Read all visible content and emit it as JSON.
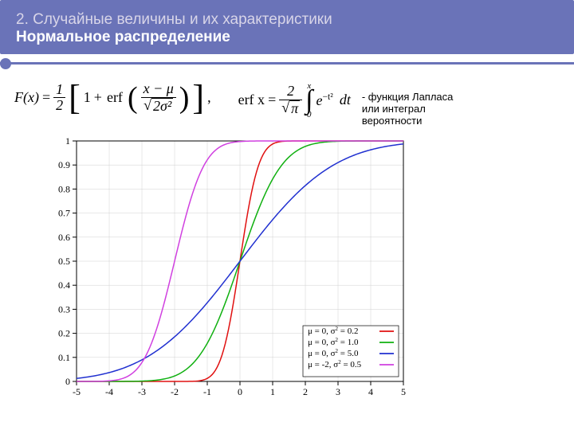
{
  "header": {
    "line1": "2. Случайные величины и их характеристики",
    "line2": "Нормальное распределение",
    "bg_color": "#6a73b8"
  },
  "formula_note": "- функция Лапласа или интеграл вероятности",
  "formula": {
    "F": "F(x)",
    "half_num": "1",
    "half_den": "2",
    "one": "1",
    "erf": "erf",
    "xmu_num": "x − μ",
    "xmu_den_sqrt": "2σ²",
    "comma": ",",
    "erf_x": "erf x",
    "two": "2",
    "pi": "π",
    "e": "e",
    "exp": "−t²",
    "dt": "dt",
    "int_upper": "x",
    "int_lower": "0"
  },
  "chart": {
    "type": "line",
    "background_color": "#ffffff",
    "plot_border_color": "#000000",
    "grid_color": "#d0d0d0",
    "xlim": [
      -5,
      5
    ],
    "ylim": [
      0,
      1
    ],
    "xtick_step": 1,
    "ytick_step": 0.1,
    "xticks": [
      -5,
      -4,
      -3,
      -2,
      -1,
      0,
      1,
      2,
      3,
      4,
      5
    ],
    "yticks": [
      0,
      0.1,
      0.2,
      0.3,
      0.4,
      0.5,
      0.6,
      0.7,
      0.8,
      0.9,
      1
    ],
    "tick_fontsize": 12,
    "line_width": 1.5,
    "legend_position": "bottom-right",
    "legend_bg": "#ffffff",
    "legend_border": "#000000",
    "legend_fontsize": 11,
    "series": [
      {
        "label_parts": {
          "mu": "μ =  0,",
          "sig": "σ",
          "sup": "2",
          "rest": "= 0.2"
        },
        "mu": 0,
        "sigma2": 0.2,
        "sigma": 0.4472,
        "color": "#e01010"
      },
      {
        "label_parts": {
          "mu": "μ =  0,",
          "sig": "σ",
          "sup": "2",
          "rest": "= 1.0"
        },
        "mu": 0,
        "sigma2": 1.0,
        "sigma": 1.0,
        "color": "#10b010"
      },
      {
        "label_parts": {
          "mu": "μ =  0,",
          "sig": "σ",
          "sup": "2",
          "rest": "= 5.0"
        },
        "mu": 0,
        "sigma2": 5.0,
        "sigma": 2.2361,
        "color": "#2030d0"
      },
      {
        "label_parts": {
          "mu": "μ = -2,",
          "sig": "σ",
          "sup": "2",
          "rest": "= 0.5"
        },
        "mu": -2,
        "sigma2": 0.5,
        "sigma": 0.7071,
        "color": "#d040e0"
      }
    ]
  }
}
